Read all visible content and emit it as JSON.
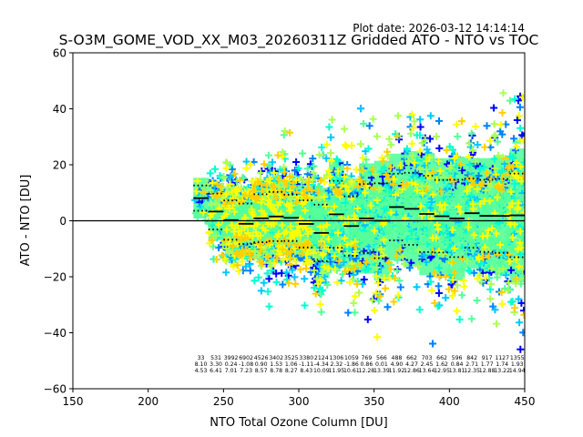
{
  "chart_data": {
    "type": "scatter",
    "title": "S-O3M_GOME_VOD_XX_M03_20260311Z Gridded ATO - NTO vs TOC",
    "subtitle": "Plot date: 2026-03-12 14:14:14",
    "xlabel": "NTO Total Ozone Column [DU]",
    "ylabel": "ATO - NTO [DU]",
    "xlim": [
      150,
      450
    ],
    "ylim": [
      -60,
      60
    ],
    "x_ticks": [
      150,
      200,
      250,
      300,
      350,
      400,
      450
    ],
    "y_ticks": [
      -60,
      -40,
      -20,
      0,
      20,
      40,
      60
    ],
    "x_tick_labels": [
      "150",
      "200",
      "250",
      "300",
      "350",
      "400",
      "450"
    ],
    "y_tick_labels": [
      "−60",
      "−40",
      "−20",
      "0",
      "20",
      "40",
      "60"
    ],
    "zero_line": 0,
    "grid": false,
    "marker": "plus",
    "marker_colors": [
      "#0000ff",
      "#0080ff",
      "#00c8ff",
      "#00ffd0",
      "#55ff99",
      "#aaff55",
      "#ffff00",
      "#ffd000"
    ],
    "bins": {
      "start": [
        230,
        240,
        250,
        260,
        270,
        280,
        290,
        300,
        310,
        320,
        330,
        340,
        350,
        360,
        370,
        380,
        390,
        400,
        410,
        420,
        430,
        440
      ],
      "width": 10,
      "count_labels": [
        "33",
        "531",
        "3992",
        "6902",
        "4526",
        "3402",
        "3525",
        "3380",
        "2124",
        "1306",
        "1059",
        "769",
        "566",
        "488",
        "662",
        "703",
        "662",
        "596",
        "842",
        "917",
        "1127",
        "1355"
      ],
      "mean_labels": [
        "8.10",
        "3.30",
        "0.24",
        "-1.08",
        "0.90",
        "1.53",
        "1.06",
        "-1.11",
        "-4.34",
        "2.32",
        "-1.86",
        "0.86",
        "0.01",
        "4.90",
        "4.27",
        "2.45",
        "1.62",
        "0.84",
        "2.71",
        "1.77",
        "1.74",
        "1.93"
      ],
      "std_labels": [
        "4.53",
        "6.41",
        "7.01",
        "7.23",
        "8.57",
        "8.78",
        "8.27",
        "8.43",
        "10.09",
        "11.95",
        "10.61",
        "12.28",
        "13.39",
        "11.92",
        "12.86",
        "13.64",
        "12.95",
        "13.81",
        "12.35",
        "12.88",
        "13.22",
        "14.94"
      ],
      "mean": [
        8.1,
        3.3,
        0.24,
        -1.08,
        0.9,
        1.53,
        1.06,
        -1.11,
        -4.34,
        2.32,
        -1.86,
        0.86,
        0.01,
        4.9,
        4.27,
        2.45,
        1.62,
        0.84,
        2.71,
        1.77,
        1.74,
        1.93
      ],
      "std": [
        4.53,
        6.41,
        7.01,
        7.23,
        8.57,
        8.78,
        8.27,
        8.43,
        10.09,
        11.95,
        10.61,
        12.28,
        13.39,
        11.92,
        12.86,
        13.64,
        12.95,
        13.81,
        12.35,
        12.88,
        13.22,
        14.94
      ]
    }
  }
}
